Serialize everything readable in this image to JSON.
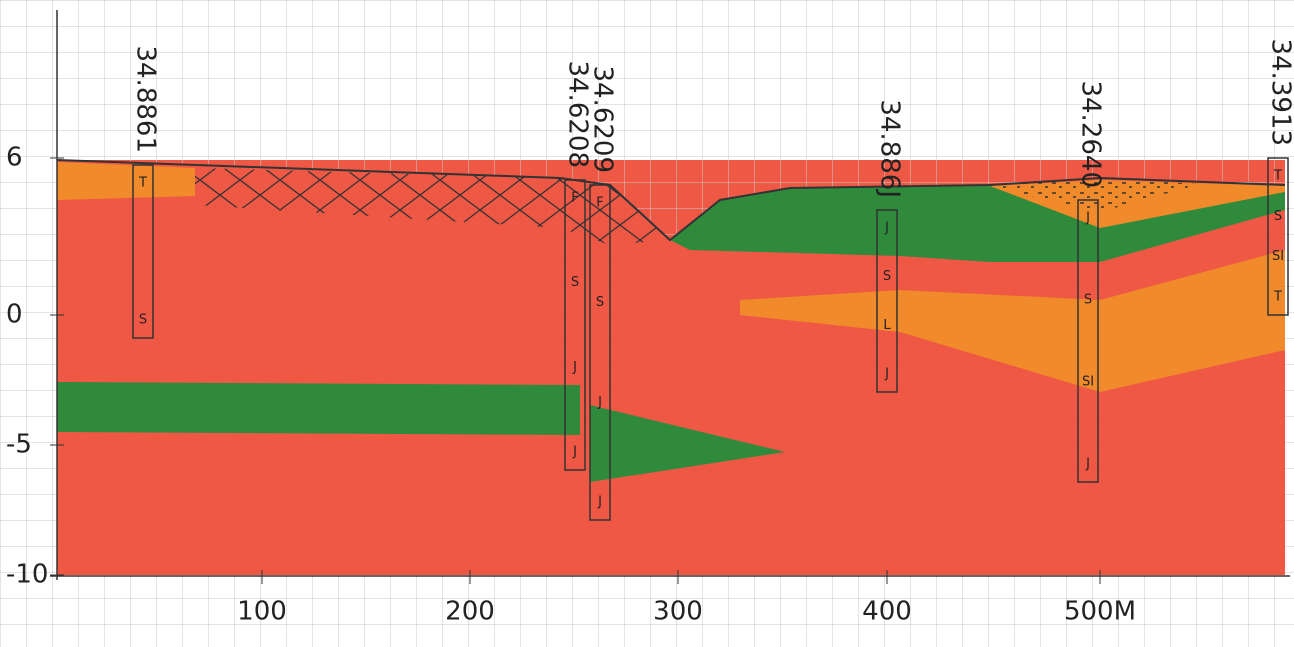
{
  "axis": {
    "y_labels": [
      "6",
      "0",
      "-5",
      "-10"
    ],
    "x_labels": [
      "100",
      "200",
      "300",
      "400",
      "500M"
    ]
  },
  "boreholes": [
    {
      "label": "34.8861",
      "layers": [
        "T",
        "S"
      ]
    },
    {
      "label": "34.6208",
      "layers": [
        "F",
        "S",
        "J",
        "J"
      ]
    },
    {
      "label": "34.6209",
      "layers": [
        "F",
        "S",
        "J",
        "J"
      ]
    },
    {
      "label": "34.886J",
      "layers": [
        "J",
        "S",
        "L",
        "J"
      ]
    },
    {
      "label": "34.2640",
      "layers": [
        "J",
        "S",
        "SI",
        "J"
      ]
    },
    {
      "label": "34.3913",
      "layers": [
        "T",
        "S",
        "SI",
        "T"
      ]
    }
  ]
}
